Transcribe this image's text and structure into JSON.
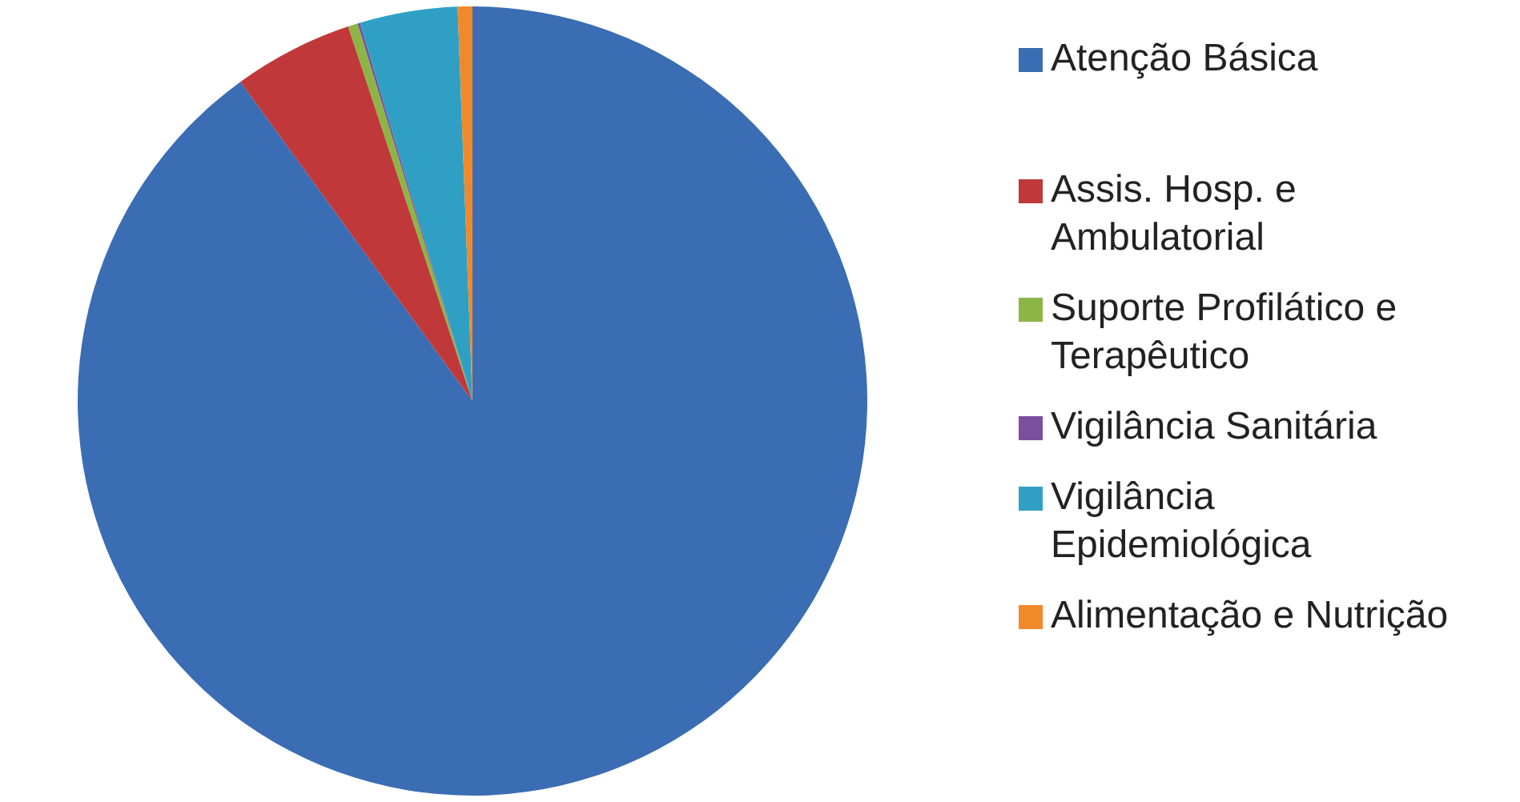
{
  "chart_data": {
    "type": "pie",
    "categories": [
      "Atenção Básica",
      "Assis. Hosp. e Ambulatorial",
      "Suporte Profilático e Terapêutico",
      "Vigilância Sanitária",
      "Vigilância Epidemiológica",
      "Alimentação e Nutrição"
    ],
    "values": [
      90.0,
      4.9,
      0.4,
      0.1,
      4.0,
      0.6
    ],
    "colors": [
      "#3a6db3",
      "#c0383a",
      "#8db545",
      "#7a4f9e",
      "#2fa0c4",
      "#f0892a"
    ],
    "legend": "right"
  }
}
